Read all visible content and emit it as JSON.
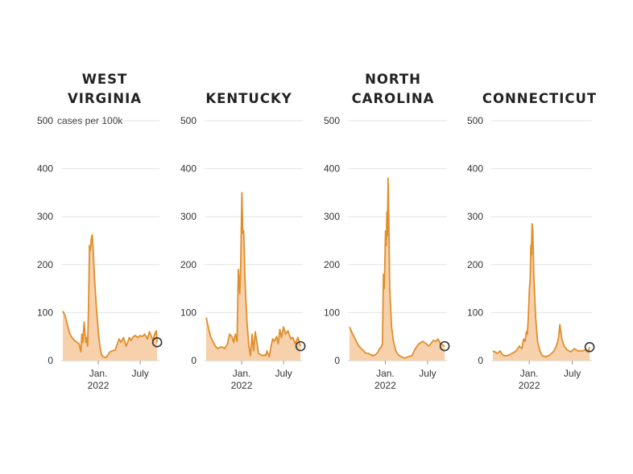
{
  "chart_data": [
    {
      "type": "area",
      "title_lines": [
        "WEST",
        "VIRGINIA"
      ],
      "unit_label": "cases per 100k",
      "ylim": [
        0,
        500
      ],
      "y_ticks": [
        0,
        100,
        200,
        300,
        400,
        500
      ],
      "x_ticks": [
        {
          "x": "2022-01-01",
          "lines": [
            "Jan.",
            "2022"
          ]
        },
        {
          "x": "2022-07-01",
          "lines": [
            "July"
          ]
        }
      ],
      "x_range": [
        "2021-08-01",
        "2022-09-15"
      ],
      "color": "#e08e2b",
      "fill": "#f6cfa6",
      "series": {
        "x": [
          "2021-08-01",
          "2021-08-10",
          "2021-08-20",
          "2021-09-01",
          "2021-09-10",
          "2021-09-20",
          "2021-10-01",
          "2021-10-10",
          "2021-10-18",
          "2021-10-22",
          "2021-10-26",
          "2021-11-01",
          "2021-11-08",
          "2021-11-12",
          "2021-11-16",
          "2021-11-20",
          "2021-11-24",
          "2021-11-28",
          "2021-12-02",
          "2021-12-06",
          "2021-12-10",
          "2021-12-16",
          "2021-12-24",
          "2022-01-01",
          "2022-01-08",
          "2022-01-15",
          "2022-01-22",
          "2022-02-01",
          "2022-02-10",
          "2022-02-20",
          "2022-03-01",
          "2022-03-15",
          "2022-04-01",
          "2022-04-10",
          "2022-04-20",
          "2022-05-01",
          "2022-05-08",
          "2022-05-15",
          "2022-05-22",
          "2022-06-01",
          "2022-06-10",
          "2022-06-20",
          "2022-07-01",
          "2022-07-10",
          "2022-07-20",
          "2022-08-01",
          "2022-08-10",
          "2022-08-18",
          "2022-08-25",
          "2022-09-01",
          "2022-09-08",
          "2022-09-12"
        ],
        "y": [
          103,
          95,
          75,
          55,
          48,
          42,
          38,
          35,
          18,
          55,
          38,
          80,
          38,
          48,
          30,
          110,
          240,
          230,
          255,
          262,
          230,
          170,
          110,
          62,
          30,
          12,
          8,
          6,
          10,
          18,
          20,
          22,
          45,
          38,
          48,
          30,
          38,
          48,
          42,
          50,
          52,
          48,
          52,
          50,
          55,
          45,
          60,
          50,
          42,
          55,
          62,
          38
        ]
      },
      "end_point": {
        "x": "2022-09-12",
        "y": 38
      }
    },
    {
      "type": "area",
      "title_lines": [
        "KENTUCKY"
      ],
      "ylim": [
        0,
        500
      ],
      "y_ticks": [
        0,
        100,
        200,
        300,
        400,
        500
      ],
      "x_ticks": [
        {
          "x": "2022-01-01",
          "lines": [
            "Jan.",
            "2022"
          ]
        },
        {
          "x": "2022-07-01",
          "lines": [
            "July"
          ]
        }
      ],
      "x_range": [
        "2021-08-01",
        "2022-09-15"
      ],
      "color": "#e08e2b",
      "fill": "#f6cfa6",
      "series": {
        "x": [
          "2021-08-01",
          "2021-08-10",
          "2021-08-20",
          "2021-09-01",
          "2021-09-10",
          "2021-09-20",
          "2021-10-01",
          "2021-10-10",
          "2021-10-20",
          "2021-11-01",
          "2021-11-10",
          "2021-11-20",
          "2021-11-28",
          "2021-12-05",
          "2021-12-12",
          "2021-12-18",
          "2021-12-24",
          "2021-12-28",
          "2022-01-02",
          "2022-01-06",
          "2022-01-10",
          "2022-01-16",
          "2022-01-24",
          "2022-02-01",
          "2022-02-08",
          "2022-02-15",
          "2022-02-22",
          "2022-03-01",
          "2022-03-15",
          "2022-04-01",
          "2022-04-10",
          "2022-04-15",
          "2022-04-20",
          "2022-04-30",
          "2022-05-08",
          "2022-05-15",
          "2022-05-22",
          "2022-06-01",
          "2022-06-08",
          "2022-06-15",
          "2022-06-22",
          "2022-07-01",
          "2022-07-10",
          "2022-07-20",
          "2022-08-01",
          "2022-08-10",
          "2022-08-20",
          "2022-09-01",
          "2022-09-12"
        ],
        "y": [
          90,
          70,
          50,
          38,
          30,
          25,
          28,
          28,
          25,
          35,
          55,
          50,
          38,
          55,
          40,
          190,
          140,
          200,
          350,
          265,
          270,
          160,
          80,
          30,
          10,
          55,
          20,
          60,
          15,
          10,
          12,
          10,
          20,
          8,
          30,
          45,
          40,
          50,
          35,
          65,
          48,
          70,
          55,
          62,
          45,
          48,
          35,
          48,
          30
        ]
      },
      "end_point": {
        "x": "2022-09-12",
        "y": 30
      }
    },
    {
      "type": "area",
      "title_lines": [
        "NORTH",
        "CAROLINA"
      ],
      "ylim": [
        0,
        500
      ],
      "y_ticks": [
        0,
        100,
        200,
        300,
        400,
        500
      ],
      "x_ticks": [
        {
          "x": "2022-01-01",
          "lines": [
            "Jan.",
            "2022"
          ]
        },
        {
          "x": "2022-07-01",
          "lines": [
            "July"
          ]
        }
      ],
      "x_range": [
        "2021-08-01",
        "2022-09-15"
      ],
      "color": "#e08e2b",
      "fill": "#f6cfa6",
      "series": {
        "x": [
          "2021-08-01",
          "2021-08-10",
          "2021-08-20",
          "2021-09-01",
          "2021-09-10",
          "2021-09-20",
          "2021-10-01",
          "2021-10-10",
          "2021-10-20",
          "2021-11-01",
          "2021-11-10",
          "2021-11-20",
          "2021-12-01",
          "2021-12-08",
          "2021-12-15",
          "2021-12-20",
          "2021-12-24",
          "2021-12-28",
          "2022-01-02",
          "2022-01-05",
          "2022-01-08",
          "2022-01-10",
          "2022-01-13",
          "2022-01-16",
          "2022-01-20",
          "2022-01-28",
          "2022-02-05",
          "2022-02-15",
          "2022-02-25",
          "2022-03-10",
          "2022-03-25",
          "2022-04-10",
          "2022-04-25",
          "2022-05-10",
          "2022-05-25",
          "2022-06-10",
          "2022-06-25",
          "2022-07-05",
          "2022-07-15",
          "2022-07-25",
          "2022-08-05",
          "2022-08-15",
          "2022-08-25",
          "2022-09-05",
          "2022-09-12"
        ],
        "y": [
          70,
          60,
          50,
          38,
          30,
          25,
          20,
          15,
          15,
          12,
          10,
          12,
          18,
          25,
          28,
          35,
          180,
          150,
          270,
          240,
          310,
          260,
          380,
          300,
          150,
          70,
          40,
          20,
          12,
          8,
          5,
          8,
          10,
          25,
          35,
          40,
          35,
          30,
          35,
          42,
          40,
          45,
          35,
          32,
          30
        ]
      },
      "end_point": {
        "x": "2022-09-12",
        "y": 30
      }
    },
    {
      "type": "area",
      "title_lines": [
        "CONNECTICUT"
      ],
      "ylim": [
        0,
        500
      ],
      "y_ticks": [
        0,
        100,
        200,
        300,
        400,
        500
      ],
      "x_ticks": [
        {
          "x": "2022-01-01",
          "lines": [
            "Jan.",
            "2022"
          ]
        },
        {
          "x": "2022-07-01",
          "lines": [
            "July"
          ]
        }
      ],
      "x_range": [
        "2021-08-01",
        "2022-09-15"
      ],
      "color": "#e08e2b",
      "fill": "#f6cfa6",
      "series": {
        "x": [
          "2021-08-01",
          "2021-08-10",
          "2021-08-20",
          "2021-09-01",
          "2021-09-10",
          "2021-09-20",
          "2021-10-01",
          "2021-10-10",
          "2021-10-20",
          "2021-11-01",
          "2021-11-10",
          "2021-11-20",
          "2021-12-01",
          "2021-12-08",
          "2021-12-15",
          "2021-12-20",
          "2021-12-24",
          "2021-12-28",
          "2022-01-02",
          "2022-01-05",
          "2022-01-08",
          "2022-01-10",
          "2022-01-13",
          "2022-01-16",
          "2022-01-20",
          "2022-01-28",
          "2022-02-05",
          "2022-02-15",
          "2022-02-25",
          "2022-03-10",
          "2022-03-25",
          "2022-04-05",
          "2022-04-15",
          "2022-04-25",
          "2022-05-01",
          "2022-05-05",
          "2022-05-10",
          "2022-05-18",
          "2022-05-28",
          "2022-06-10",
          "2022-06-25",
          "2022-07-10",
          "2022-07-25",
          "2022-08-10",
          "2022-08-25",
          "2022-09-05",
          "2022-09-12"
        ],
        "y": [
          20,
          18,
          15,
          20,
          12,
          10,
          10,
          12,
          15,
          18,
          22,
          30,
          25,
          45,
          40,
          60,
          55,
          90,
          150,
          170,
          240,
          220,
          285,
          270,
          180,
          90,
          40,
          20,
          10,
          8,
          10,
          15,
          20,
          30,
          40,
          50,
          75,
          45,
          30,
          22,
          18,
          25,
          20,
          20,
          22,
          18,
          28
        ]
      },
      "end_point": {
        "x": "2022-09-12",
        "y": 28
      }
    }
  ]
}
